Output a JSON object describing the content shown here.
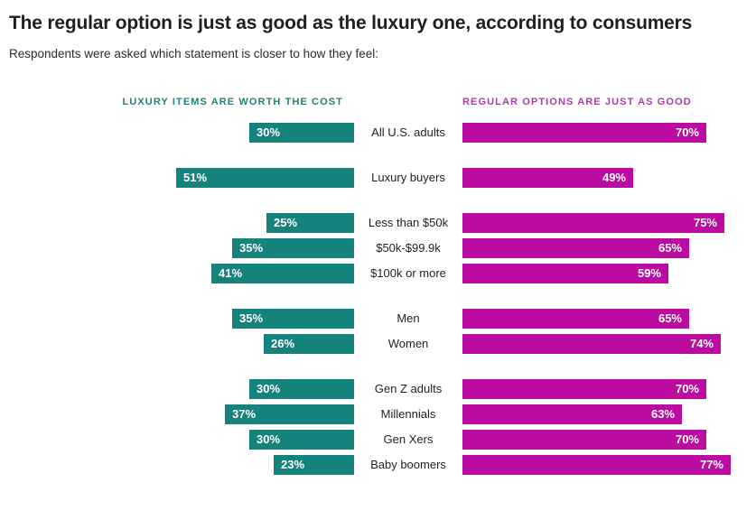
{
  "title": "The regular option is just as good as the luxury one, according to consumers",
  "subtitle": "Respondents were asked which statement is closer to how they feel:",
  "colors": {
    "luxury_bar": "#13837B",
    "regular_bar": "#BC0BA0",
    "luxury_header_text": "#1E827A",
    "regular_header_text": "#AC3AA4",
    "bar_value_text": "#FFFFFF",
    "title_text": "#1F1F1F",
    "category_text": "#1F1F1F"
  },
  "chart_data": {
    "type": "bar",
    "orientation": "horizontal-diverging-paired",
    "title": "The regular option is just as good as the luxury one, according to consumers",
    "subtitle": "Respondents were asked which statement is closer to how they feel:",
    "categories": [
      "All U.S. adults",
      "Luxury buyers",
      "Less than $50k",
      "$50k-$99.9k",
      "$100k or more",
      "Men",
      "Women",
      "Gen Z adults",
      "Millennials",
      "Gen Xers",
      "Baby boomers"
    ],
    "series": [
      {
        "name": "LUXURY ITEMS ARE WORTH THE COST",
        "side": "left",
        "color": "#13837B",
        "values": [
          30,
          51,
          25,
          35,
          41,
          35,
          26,
          30,
          37,
          30,
          23
        ]
      },
      {
        "name": "REGULAR OPTIONS ARE JUST AS GOOD",
        "side": "right",
        "color": "#BC0BA0",
        "values": [
          70,
          49,
          75,
          65,
          59,
          65,
          74,
          70,
          63,
          70,
          77
        ]
      }
    ],
    "value_suffix": "%",
    "xlim": [
      0,
      100
    ],
    "row_groups": [
      [
        0
      ],
      [
        1
      ],
      [
        2,
        3,
        4
      ],
      [
        5,
        6
      ],
      [
        7,
        8,
        9,
        10
      ]
    ],
    "value_labels": "inside bar ends, white bold",
    "grid": false,
    "legend_position": "series names as column headers above chart"
  }
}
